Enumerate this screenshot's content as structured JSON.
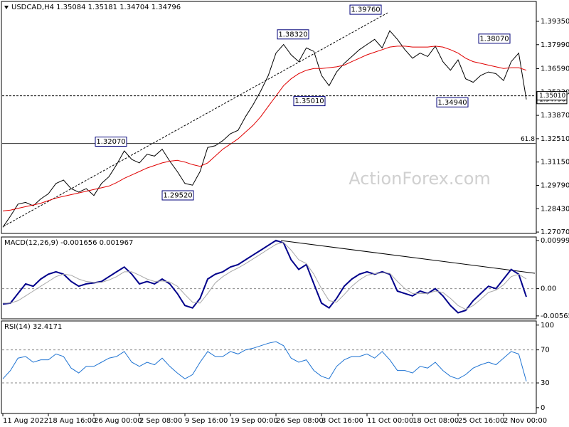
{
  "chart_data": [
    {
      "type": "line",
      "title": "USDCAD,H4 1.35084 1.35181 1.34704 1.34796",
      "watermark": "ActionForex.com",
      "categories": [
        "11 Aug 2022",
        null,
        null,
        null,
        null,
        null,
        "18 Aug 16:00",
        null,
        null,
        null,
        null,
        null,
        "26 Aug 00:00",
        null,
        null,
        null,
        null,
        null,
        "2 Sep 08:00",
        null,
        null,
        null,
        null,
        null,
        "9 Sep 16:00",
        null,
        null,
        null,
        null,
        null,
        "19 Sep 00:00",
        null,
        null,
        null,
        null,
        null,
        "26 Sep 08:00",
        null,
        null,
        null,
        null,
        null,
        "3 Oct 16:00",
        null,
        null,
        null,
        null,
        null,
        "11 Oct 00:00",
        null,
        null,
        null,
        null,
        null,
        "18 Oct 08:00",
        null,
        null,
        null,
        null,
        null,
        "25 Oct 16:00",
        null,
        null,
        null,
        null,
        null,
        "2 Nov 00:00",
        null,
        null,
        null
      ],
      "series": [
        {
          "name": "USDCAD",
          "color": "#000000",
          "values": [
            1.2735,
            1.28,
            1.287,
            1.288,
            1.286,
            1.29,
            1.293,
            1.299,
            1.301,
            1.296,
            1.294,
            1.296,
            1.292,
            1.299,
            1.303,
            1.31,
            1.318,
            1.313,
            1.311,
            1.316,
            1.315,
            1.319,
            1.312,
            1.306,
            1.299,
            1.298,
            1.306,
            1.32,
            1.321,
            1.324,
            1.328,
            1.33,
            1.338,
            1.345,
            1.353,
            1.362,
            1.375,
            1.38,
            1.374,
            1.37,
            1.378,
            1.376,
            1.362,
            1.356,
            1.364,
            1.369,
            1.373,
            1.377,
            1.38,
            1.383,
            1.378,
            1.388,
            1.383,
            1.377,
            1.372,
            1.375,
            1.373,
            1.379,
            1.37,
            1.365,
            1.371,
            1.36,
            1.358,
            1.362,
            1.364,
            1.363,
            1.359,
            1.37,
            1.375,
            1.348
          ]
        },
        {
          "name": "MA",
          "color": "#e00000",
          "values": [
            1.283,
            1.2835,
            1.2845,
            1.2855,
            1.2865,
            1.2875,
            1.289,
            1.2905,
            1.2915,
            1.2925,
            1.2935,
            1.2945,
            1.2955,
            1.2965,
            1.2975,
            1.2995,
            1.302,
            1.304,
            1.306,
            1.308,
            1.3095,
            1.311,
            1.312,
            1.3125,
            1.3115,
            1.31,
            1.309,
            1.311,
            1.315,
            1.319,
            1.322,
            1.325,
            1.329,
            1.333,
            1.338,
            1.344,
            1.35,
            1.356,
            1.36,
            1.363,
            1.365,
            1.366,
            1.366,
            1.3665,
            1.367,
            1.368,
            1.37,
            1.372,
            1.374,
            1.3755,
            1.377,
            1.3785,
            1.379,
            1.379,
            1.3785,
            1.3785,
            1.3785,
            1.379,
            1.3785,
            1.377,
            1.375,
            1.372,
            1.37,
            1.369,
            1.368,
            1.367,
            1.366,
            1.3665,
            1.3665,
            1.365
          ]
        }
      ],
      "ylim": [
        1.2699,
        1.4051
      ],
      "yticks": [
        {
          "value": 1.3935,
          "label": "1.39350"
        },
        {
          "value": 1.3799,
          "label": "1.37990"
        },
        {
          "value": 1.3659,
          "label": "1.36590"
        },
        {
          "value": 1.3523,
          "label": "1.35230"
        },
        {
          "value": 1.3387,
          "label": "1.33870"
        },
        {
          "value": 1.3251,
          "label": "1.32510"
        },
        {
          "value": 1.3115,
          "label": "1.31150"
        },
        {
          "value": 1.2979,
          "label": "1.29790"
        },
        {
          "value": 1.2843,
          "label": "1.28430"
        },
        {
          "value": 1.2707,
          "label": "1.27070"
        }
      ],
      "annotations": [
        {
          "value": 1.3976,
          "label": "1.39760"
        },
        {
          "value": 1.3832,
          "label": "1.38320"
        },
        {
          "value": 1.3501,
          "label": "1.35010"
        },
        {
          "value": 1.3207,
          "label": "1.32070"
        },
        {
          "value": 1.2952,
          "label": "1.29520"
        },
        {
          "value": 1.3807,
          "label": "1.38070"
        },
        {
          "value": 1.3494,
          "label": "1.34940"
        }
      ],
      "price_levels": [
        {
          "value": 1.34796,
          "label": "1.34796"
        },
        {
          "value": 1.3501,
          "label": "1.35010"
        }
      ],
      "fib_level": {
        "value": 1.3223,
        "label": "61.8"
      }
    },
    {
      "type": "line",
      "title": "MACD(12,26,9) -0.001656 0.001967",
      "series": [
        {
          "name": "MACD",
          "color": "#00008b",
          "values": [
            -0.0032,
            -0.003,
            -0.001,
            0.001,
            0.0005,
            0.002,
            0.003,
            0.0035,
            0.003,
            0.0015,
            0.0005,
            0.001,
            0.0012,
            0.0015,
            0.0025,
            0.0035,
            0.0045,
            0.003,
            0.001,
            0.0015,
            0.001,
            0.002,
            0.001,
            -0.001,
            -0.0035,
            -0.004,
            -0.002,
            0.002,
            0.003,
            0.0035,
            0.0045,
            0.005,
            0.006,
            0.007,
            0.008,
            0.009,
            0.01,
            0.0095,
            0.006,
            0.004,
            0.005,
            0.001,
            -0.003,
            -0.004,
            -0.002,
            0.0005,
            0.002,
            0.003,
            0.0035,
            0.003,
            0.0035,
            0.003,
            -0.0005,
            -0.001,
            -0.0015,
            -0.0005,
            -0.001,
            0.0,
            -0.0015,
            -0.0035,
            -0.005,
            -0.0045,
            -0.0025,
            -0.001,
            0.0005,
            0.0,
            0.002,
            0.004,
            0.003,
            -0.0017
          ]
        },
        {
          "name": "Signal",
          "color": "#a8a8a8",
          "values": [
            -0.003,
            -0.003,
            -0.0025,
            -0.0015,
            -0.0005,
            0.0005,
            0.0015,
            0.0025,
            0.003,
            0.0028,
            0.002,
            0.0015,
            0.0013,
            0.0013,
            0.0018,
            0.0025,
            0.0035,
            0.0035,
            0.0028,
            0.002,
            0.0015,
            0.0016,
            0.0014,
            0.0005,
            -0.0012,
            -0.0028,
            -0.003,
            -0.001,
            0.0012,
            0.0025,
            0.0035,
            0.0043,
            0.0052,
            0.0062,
            0.0072,
            0.0082,
            0.0092,
            0.0096,
            0.008,
            0.006,
            0.0052,
            0.003,
            0.0,
            -0.0025,
            -0.0028,
            -0.0012,
            0.0005,
            0.0018,
            0.0028,
            0.0031,
            0.0033,
            0.0032,
            0.0015,
            0.0,
            -0.001,
            -0.001,
            -0.001,
            -0.0005,
            -0.0008,
            -0.002,
            -0.0035,
            -0.0043,
            -0.0035,
            -0.0022,
            -0.0008,
            -0.0003,
            0.0008,
            0.0025,
            0.003,
            0.002
          ]
        }
      ],
      "ylim": [
        -0.00626,
        0.01073
      ],
      "yticks": [
        0.009991,
        {
          "value": 0,
          "label": "0.00"
        },
        -0.005651
      ],
      "levels": [
        0
      ]
    },
    {
      "type": "line",
      "title": "RSI(14) 32.4171",
      "series": [
        {
          "name": "RSI",
          "color": "#1e73d2",
          "values": [
            35,
            45,
            60,
            62,
            55,
            58,
            58,
            65,
            62,
            48,
            42,
            50,
            50,
            55,
            60,
            62,
            68,
            55,
            50,
            55,
            52,
            60,
            50,
            42,
            35,
            40,
            55,
            68,
            62,
            62,
            68,
            65,
            70,
            72,
            75,
            78,
            80,
            75,
            60,
            55,
            58,
            45,
            38,
            35,
            50,
            58,
            62,
            62,
            65,
            60,
            68,
            58,
            45,
            45,
            42,
            50,
            48,
            55,
            45,
            38,
            35,
            40,
            48,
            52,
            55,
            52,
            60,
            68,
            65,
            32
          ]
        }
      ],
      "ylim": [
        -7,
        105
      ],
      "yticks": [
        100,
        70,
        30,
        0
      ],
      "levels": [
        70,
        30
      ]
    }
  ]
}
